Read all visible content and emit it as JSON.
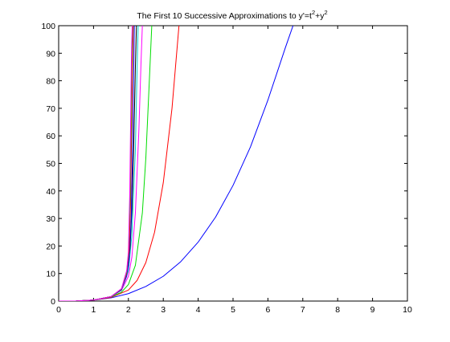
{
  "chart_data": {
    "type": "line",
    "title": {
      "prefix": "The First 10 Successive Approximations to y'=t",
      "sup1": "2",
      "mid": "+y",
      "sup2": "2"
    },
    "xlabel": "",
    "ylabel": "",
    "xlim": [
      0,
      10
    ],
    "ylim": [
      0,
      100
    ],
    "xticks": [
      0,
      1,
      2,
      3,
      4,
      5,
      6,
      7,
      8,
      9,
      10
    ],
    "yticks": [
      0,
      10,
      20,
      30,
      40,
      50,
      60,
      70,
      80,
      90,
      100
    ],
    "grid": false,
    "legend": "none",
    "series": [
      {
        "color": "#0000ff",
        "x": [
          0,
          0.5,
          1,
          1.5,
          2,
          2.5,
          3,
          3.5,
          4,
          4.5,
          5,
          5.5,
          6,
          6.5,
          6.72
        ],
        "y": [
          0,
          0.04,
          0.35,
          1.15,
          2.7,
          5.3,
          9.0,
          14.3,
          21.4,
          30.5,
          42.0,
          56.0,
          73.0,
          92.0,
          100
        ]
      },
      {
        "color": "#ff0000",
        "x": [
          0,
          0.5,
          1,
          1.5,
          2,
          2.25,
          2.5,
          2.75,
          3,
          3.25,
          3.45
        ],
        "y": [
          0,
          0.04,
          0.35,
          1.3,
          4.0,
          7.5,
          14.0,
          25.0,
          43.0,
          70.0,
          100
        ]
      },
      {
        "color": "#00dd00",
        "x": [
          0,
          0.5,
          1,
          1.5,
          1.8,
          2,
          2.2,
          2.4,
          2.5,
          2.6,
          2.67
        ],
        "y": [
          0,
          0.04,
          0.36,
          1.5,
          3.2,
          6.0,
          13.0,
          32.0,
          52.0,
          80.0,
          100
        ]
      },
      {
        "color": "#ff00ff",
        "x": [
          0,
          0.5,
          1,
          1.5,
          1.8,
          2,
          2.1,
          2.2,
          2.3,
          2.36,
          2.4
        ],
        "y": [
          0,
          0.04,
          0.36,
          1.6,
          3.8,
          9.0,
          16.0,
          32.0,
          62.0,
          86.0,
          100
        ]
      },
      {
        "color": "#00cccc",
        "x": [
          0,
          0.5,
          1,
          1.5,
          1.8,
          2,
          2.1,
          2.2,
          2.25,
          2.28
        ],
        "y": [
          0,
          0.04,
          0.36,
          1.6,
          4.0,
          11.0,
          24.0,
          55.0,
          85.0,
          100
        ]
      },
      {
        "color": "#000000",
        "x": [
          0,
          0.5,
          1,
          1.5,
          1.8,
          2,
          2.05,
          2.1,
          2.15,
          2.2,
          2.23
        ],
        "y": [
          0,
          0.04,
          0.36,
          1.6,
          4.2,
          13.0,
          20.0,
          33.0,
          55.0,
          85.0,
          100
        ]
      },
      {
        "color": "#0000ff",
        "x": [
          0,
          0.5,
          1,
          1.5,
          1.8,
          1.95,
          2.02,
          2.08,
          2.12,
          2.15,
          2.17
        ],
        "y": [
          0,
          0.04,
          0.36,
          1.6,
          4.3,
          9.0,
          15.0,
          30.0,
          55.0,
          82.0,
          100
        ]
      },
      {
        "color": "#ff0000",
        "x": [
          0,
          0.5,
          1,
          1.5,
          1.8,
          1.95,
          2.02,
          2.06,
          2.09,
          2.12,
          2.14
        ],
        "y": [
          0,
          0.04,
          0.36,
          1.6,
          4.4,
          10.0,
          18.0,
          35.0,
          60.0,
          88.0,
          100
        ]
      },
      {
        "color": "#00dd00",
        "x": [
          0,
          0.5,
          1,
          1.5,
          1.8,
          1.95,
          2.0,
          2.05,
          2.08,
          2.1,
          2.12
        ],
        "y": [
          0,
          0.04,
          0.36,
          1.6,
          4.4,
          10.5,
          17.0,
          38.0,
          70.0,
          90.0,
          100
        ]
      },
      {
        "color": "#ff00ff",
        "x": [
          0,
          0.5,
          1,
          1.5,
          1.8,
          1.95,
          2.0,
          2.04,
          2.07,
          2.09,
          2.11
        ],
        "y": [
          0,
          0.04,
          0.36,
          1.6,
          4.5,
          11.0,
          18.0,
          40.0,
          72.0,
          92.0,
          100
        ]
      }
    ]
  }
}
